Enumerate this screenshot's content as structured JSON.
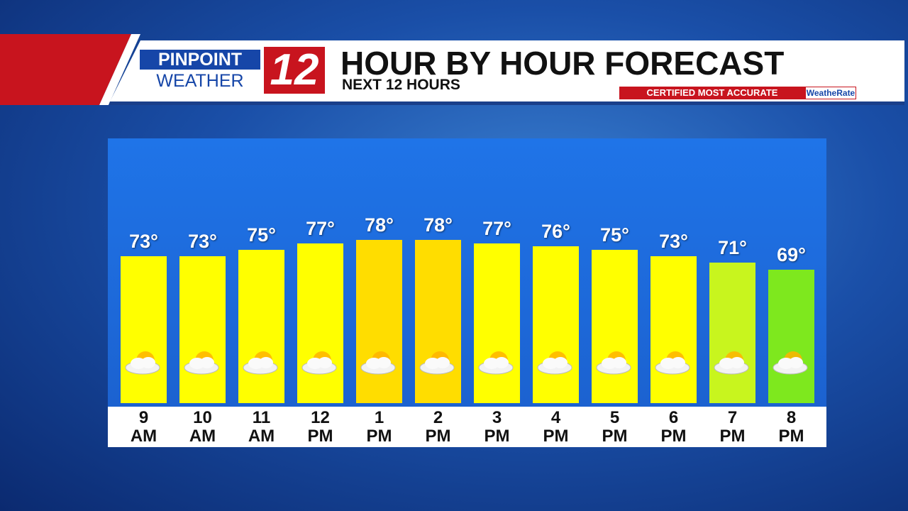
{
  "header": {
    "brand_top": "PINPOINT",
    "brand_bottom": "WEATHER",
    "channel": "12",
    "badge": "CERTIFIED MOST ACCURATE",
    "badge_brand": "WeatheRate"
  },
  "chart_data": {
    "type": "bar",
    "title": "HOUR BY HOUR FORECAST",
    "subtitle": "NEXT 12 HOURS",
    "categories": [
      "9 AM",
      "10 AM",
      "11 AM",
      "12 PM",
      "1 PM",
      "2 PM",
      "3 PM",
      "4 PM",
      "5 PM",
      "6 PM",
      "7 PM",
      "8 PM"
    ],
    "values": [
      73,
      73,
      75,
      77,
      78,
      78,
      77,
      76,
      75,
      73,
      71,
      69
    ],
    "value_labels": [
      "73°",
      "73°",
      "75°",
      "77°",
      "78°",
      "78°",
      "77°",
      "76°",
      "75°",
      "73°",
      "71°",
      "69°"
    ],
    "colors": [
      "#ffff00",
      "#ffff00",
      "#ffff00",
      "#ffff00",
      "#ffdd00",
      "#ffdd00",
      "#ffff00",
      "#ffff00",
      "#ffff00",
      "#ffff00",
      "#c8f51e",
      "#7ee81e"
    ],
    "ylim": [
      28,
      100
    ]
  }
}
